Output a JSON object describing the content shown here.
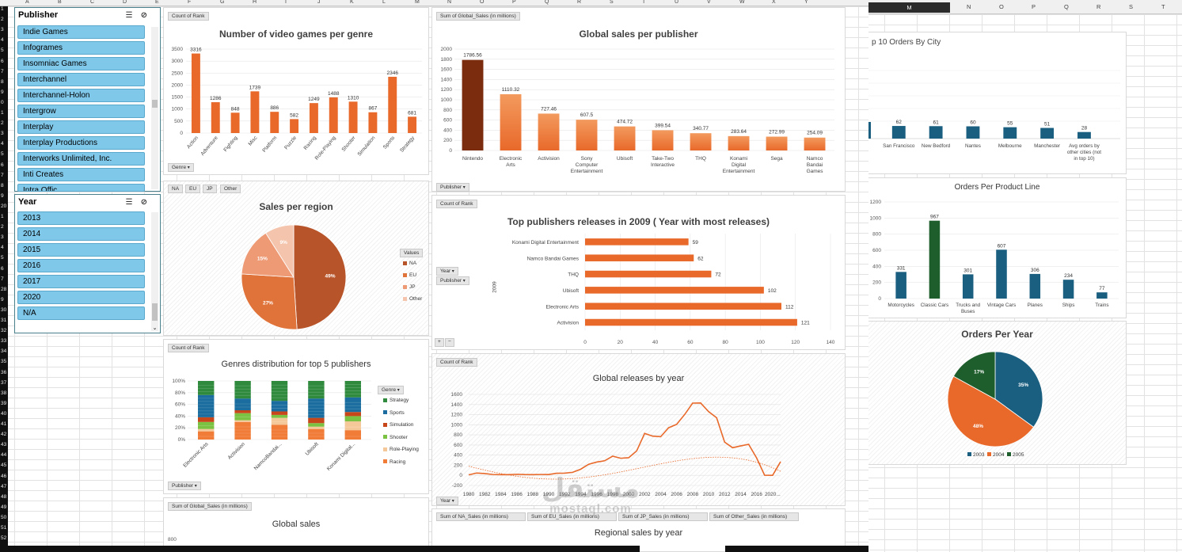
{
  "colors": {
    "orange": "#e8692a",
    "orange_light": "#f39a5e",
    "nintendo": "#7b2c0e",
    "slicer_item": "#7fc8ea",
    "teal": "#1a5f80",
    "green": "#1e5e2c",
    "pie_na": "#b8542a",
    "pie_eu": "#e0733a",
    "pie_jp": "#ee9a75",
    "pie_other": "#f4c4ac"
  },
  "sheet": {
    "columns_left": [
      "A",
      "B",
      "C",
      "D",
      "E",
      "F",
      "G",
      "H",
      "I",
      "J",
      "K",
      "L",
      "M",
      "N",
      "O",
      "P",
      "Q",
      "R",
      "S",
      "T",
      "U",
      "V",
      "W",
      "X",
      "Y"
    ],
    "columns_right": [
      "M",
      "N",
      "O",
      "P",
      "Q",
      "R",
      "S",
      "T"
    ],
    "selected_column": "M",
    "rows": [
      "1",
      "2",
      "3",
      "4",
      "5",
      "6",
      "7",
      "8",
      "9",
      "0",
      "1",
      "2",
      "3",
      "4",
      "5",
      "6",
      "7",
      "8",
      "9",
      "20",
      "1",
      "2",
      "3",
      "4",
      "5",
      "6",
      "7",
      "28",
      "9",
      "30",
      "31",
      "32",
      "33",
      "34",
      "35",
      "36",
      "37",
      "38",
      "39",
      "40",
      "41",
      "42",
      "43",
      "44",
      "45",
      "46",
      "47",
      "48",
      "49",
      "50",
      "51",
      "52"
    ]
  },
  "publisher_slicer": {
    "title": "Publisher",
    "items": [
      "Indie Games",
      "Infogrames",
      "Insomniac Games",
      "Interchannel",
      "Interchannel-Holon",
      "Intergrow",
      "Interplay",
      "Interplay Productions",
      "Interworks Unlimited, Inc.",
      "Inti Creates",
      "Intra Offic..."
    ]
  },
  "year_slicer": {
    "title": "Year",
    "items": [
      "2013",
      "2014",
      "2015",
      "2016",
      "2017",
      "2020",
      "N/A"
    ]
  },
  "genre_chart": {
    "field_button": "Count of Rank",
    "axis_button": "Genre",
    "chart_data": {
      "type": "bar",
      "title": "Number of video games per genre",
      "categories": [
        "Action",
        "Adventure",
        "Fighting",
        "Misc",
        "Platform",
        "Puzzle",
        "Racing",
        "Role-Playing",
        "Shooter",
        "Simulation",
        "Sports",
        "Strategy"
      ],
      "values": [
        3316,
        1286,
        848,
        1739,
        886,
        582,
        1249,
        1488,
        1310,
        867,
        2346,
        681
      ],
      "ylim": [
        0,
        3500
      ],
      "yticks": [
        "0",
        "500",
        "1000",
        "1500",
        "2000",
        "2500",
        "3000",
        "3500"
      ]
    }
  },
  "publisher_sales_chart": {
    "field_button": "Sum of Global_Sales (in millions)",
    "axis_button": "Publisher",
    "chart_data": {
      "type": "bar",
      "title": "Global sales per publisher",
      "categories": [
        [
          "Nintendo"
        ],
        [
          "Electronic",
          "Arts"
        ],
        [
          "Activision"
        ],
        [
          "Sony",
          "Computer",
          "Entertainment"
        ],
        [
          "Ubisoft"
        ],
        [
          "Take-Two",
          "Interactive"
        ],
        [
          "THQ"
        ],
        [
          "Konami",
          "Digital",
          "Entertainment"
        ],
        [
          "Sega"
        ],
        [
          "Namco",
          "Bandai",
          "Games"
        ]
      ],
      "values": [
        1786.56,
        1110.32,
        727.46,
        607.5,
        474.72,
        399.54,
        340.77,
        283.64,
        272.99,
        254.09
      ],
      "value_labels": [
        "1786.56",
        "1110.32",
        "727.46",
        "607.5",
        "474.72",
        "399.54",
        "340.77",
        "283.64",
        "272.99",
        "254.09"
      ],
      "ylim": [
        0,
        2000
      ],
      "yticks": [
        "0",
        "200",
        "400",
        "600",
        "800",
        "1000",
        "1200",
        "1400",
        "1600",
        "1800",
        "2000"
      ]
    }
  },
  "region_pie": {
    "buttons": [
      "NA",
      "EU",
      "JP",
      "Other"
    ],
    "legend_title": "Values",
    "chart_data": {
      "type": "pie",
      "title": "Sales per region",
      "labels": [
        "NA",
        "EU",
        "JP",
        "Other"
      ],
      "values": [
        49,
        27,
        15,
        9
      ],
      "value_labels": [
        "49%",
        "27%",
        "15%",
        "9%"
      ]
    }
  },
  "releases_2009_chart": {
    "field_button": "Count of Rank",
    "filter_buttons": [
      "Year",
      "Publisher"
    ],
    "axis_label": "2009",
    "chart_data": {
      "type": "bar",
      "orientation": "horizontal",
      "title": "Top publishers releases in 2009 ( Year with most releases)",
      "categories": [
        "Konami Digital Entertainment",
        "Namco Bandai Games",
        "THQ",
        "Ubisoft",
        "Electronic Arts",
        "Activision"
      ],
      "values": [
        59,
        62,
        72,
        102,
        112,
        121
      ],
      "xlim": [
        0,
        140
      ],
      "xticks": [
        "0",
        "20",
        "40",
        "60",
        "80",
        "100",
        "120",
        "140"
      ]
    }
  },
  "genre_distribution_chart": {
    "field_button": "Count of Rank",
    "axis_button": "Publisher",
    "legend_button": "Genre",
    "chart_data": {
      "type": "bar",
      "stacked": true,
      "title": "Genres distribution for top 5 publishers",
      "categories": [
        "Electronic Arts",
        "Activision",
        "NamcoBandai...",
        "Ubisoft",
        "Konami Digital..."
      ],
      "yticks": [
        "0%",
        "20%",
        "40%",
        "60%",
        "80%",
        "100%"
      ],
      "series": [
        {
          "name": "Racing",
          "values": [
            14,
            30,
            25,
            18,
            16
          ]
        },
        {
          "name": "Role-Playing",
          "values": [
            4,
            3,
            12,
            4,
            15
          ]
        },
        {
          "name": "Shooter",
          "values": [
            12,
            12,
            5,
            6,
            9
          ]
        },
        {
          "name": "Simulation",
          "values": [
            8,
            5,
            6,
            9,
            7
          ]
        },
        {
          "name": "Sports",
          "values": [
            38,
            20,
            18,
            33,
            25
          ]
        },
        {
          "name": "Strategy",
          "values": [
            24,
            30,
            34,
            30,
            28
          ]
        }
      ],
      "legend": [
        "Strategy",
        "Sports",
        "Simulation",
        "Shooter",
        "Role-Playing",
        "Racing"
      ]
    }
  },
  "releases_by_year_chart": {
    "field_button": "Count of Rank",
    "axis_button": "Year",
    "chart_data": {
      "type": "line",
      "title": "Global releases by year",
      "x": [
        "1980",
        "1981",
        "1982",
        "1983",
        "1984",
        "1985",
        "1986",
        "1987",
        "1988",
        "1989",
        "1990",
        "1991",
        "1992",
        "1993",
        "1994",
        "1995",
        "1996",
        "1997",
        "1998",
        "1999",
        "2000",
        "2001",
        "2002",
        "2003",
        "2004",
        "2005",
        "2006",
        "2007",
        "2008",
        "2009",
        "2010",
        "2011",
        "2012",
        "2013",
        "2014",
        "2015",
        "2016",
        "2017",
        "2020",
        "N/A"
      ],
      "xtick_labels": [
        "1980",
        "1982",
        "1984",
        "1986",
        "1988",
        "1990",
        "1992",
        "1994",
        "1996",
        "1998",
        "2000",
        "2002",
        "2004",
        "2006",
        "2008",
        "2010",
        "2012",
        "2014",
        "2016",
        "2020..."
      ],
      "values": [
        9,
        46,
        36,
        17,
        14,
        14,
        21,
        16,
        15,
        17,
        16,
        41,
        43,
        60,
        121,
        219,
        263,
        289,
        379,
        338,
        349,
        482,
        829,
        775,
        763,
        941,
        1008,
        1202,
        1428,
        1431,
        1259,
        1139,
        657,
        546,
        582,
        614,
        344,
        3,
        1,
        271
      ],
      "ylim": [
        -200,
        1600
      ],
      "yticks": [
        "-200",
        "0",
        "200",
        "400",
        "600",
        "800",
        "1000",
        "1200",
        "1400",
        "1600"
      ]
    }
  },
  "global_sales_chart": {
    "field_button": "Sum of Global_Sales (in millions)",
    "chart_data": {
      "type": "line",
      "title": "Global sales",
      "yticks": [
        "800"
      ]
    }
  },
  "regional_sales_chart": {
    "field_buttons": [
      "Sum of NA_Sales (in millions)",
      "Sum of EU_Sales (in millions)",
      "Sum of JP_Sales (in millions)",
      "Sum of Other_Sales (in millions)"
    ],
    "chart_data": {
      "type": "line",
      "title": "Regional sales by year"
    }
  },
  "city_chart": {
    "chart_data": {
      "type": "bar",
      "title": "p 10 Orders By City",
      "categories": [
        [
          "San Francisco"
        ],
        [
          "New Bedford"
        ],
        [
          "Nantes"
        ],
        [
          "Melbourne"
        ],
        [
          "Manchester"
        ],
        [
          "Avg orders by",
          "other cities (not",
          "in top 10)"
        ]
      ],
      "values": [
        62,
        61,
        60,
        55,
        51,
        28
      ],
      "value_labels": [
        "62",
        "61",
        "60",
        "55",
        "51",
        "28"
      ]
    }
  },
  "product_line_chart": {
    "chart_data": {
      "type": "bar",
      "title": "Orders Per Product Line",
      "categories": [
        [
          "Motorcycles"
        ],
        [
          "Classic Cars"
        ],
        [
          "Trucks and",
          "Buses"
        ],
        [
          "Vintage Cars"
        ],
        [
          "Planes"
        ],
        [
          "Ships"
        ],
        [
          "Trains"
        ]
      ],
      "values": [
        331,
        967,
        301,
        607,
        306,
        234,
        77
      ],
      "value_labels": [
        "331",
        "967",
        "301",
        "607",
        "306",
        "234",
        "77"
      ],
      "ylim": [
        0,
        1200
      ],
      "yticks": [
        "0",
        "200",
        "400",
        "600",
        "800",
        "1000",
        "1200"
      ]
    }
  },
  "orders_year_pie": {
    "chart_data": {
      "type": "pie",
      "title": "Orders Per Year",
      "labels": [
        "2003",
        "2004",
        "2005"
      ],
      "values": [
        35,
        48,
        17
      ],
      "value_labels": [
        "35%",
        "48%",
        "17%"
      ]
    }
  },
  "watermark": {
    "arabic": "مستقل",
    "latin": "mostaql.com"
  }
}
